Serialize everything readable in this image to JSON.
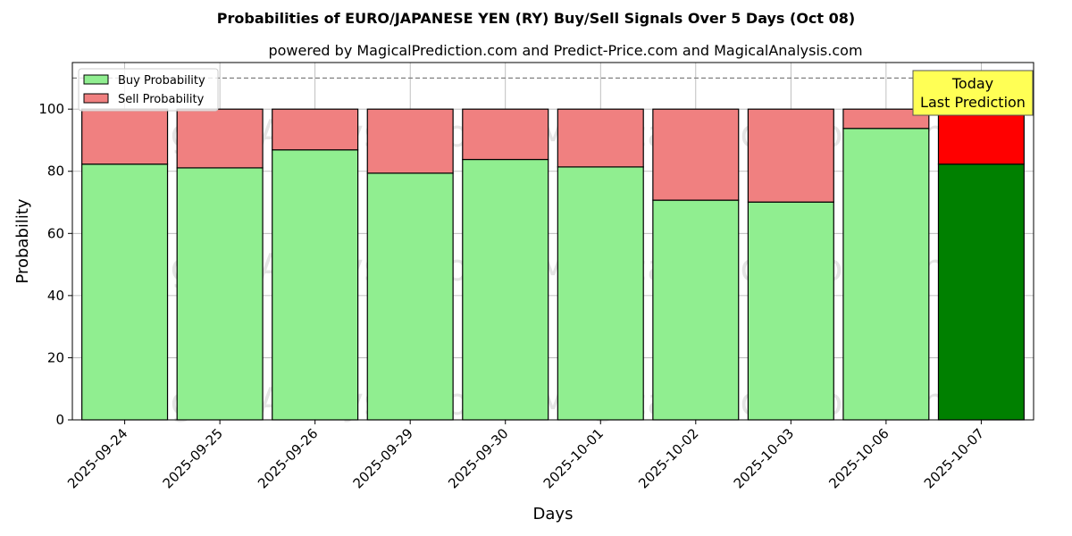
{
  "chart_data": {
    "type": "bar",
    "stacked": true,
    "title": "Probabilities of EURO/JAPANESE YEN (RY) Buy/Sell Signals Over 5 Days (Oct 08)",
    "subtitle": "powered by MagicalPrediction.com and Predict-Price.com and MagicalAnalysis.com",
    "xlabel": "Days",
    "ylabel": "Probability",
    "ylim": [
      0,
      115
    ],
    "yticks": [
      0,
      20,
      40,
      60,
      80,
      100
    ],
    "grid": true,
    "legend_position": "top-left",
    "reference_line": 110,
    "categories": [
      "2025-09-24",
      "2025-09-25",
      "2025-09-26",
      "2025-09-29",
      "2025-09-30",
      "2025-10-01",
      "2025-10-02",
      "2025-10-03",
      "2025-10-06",
      "2025-10-07"
    ],
    "series": [
      {
        "name": "Buy Probability",
        "color": "#90ee90",
        "highlight_color": "#008000",
        "values": [
          82.3,
          81.1,
          86.9,
          79.4,
          83.8,
          81.4,
          70.7,
          70.1,
          93.8,
          82.3
        ]
      },
      {
        "name": "Sell Probability",
        "color": "#f08080",
        "highlight_color": "#ff0000",
        "values": [
          17.7,
          18.9,
          13.1,
          20.6,
          16.2,
          18.6,
          29.3,
          29.9,
          6.2,
          17.7
        ]
      }
    ],
    "highlight_index": 9,
    "annotation": {
      "lines": [
        "Today",
        "Last Prediction"
      ],
      "color": "#ffff55"
    },
    "watermarks": [
      "MagicalAnalysis.com",
      "MagicalPrediction.com"
    ]
  }
}
